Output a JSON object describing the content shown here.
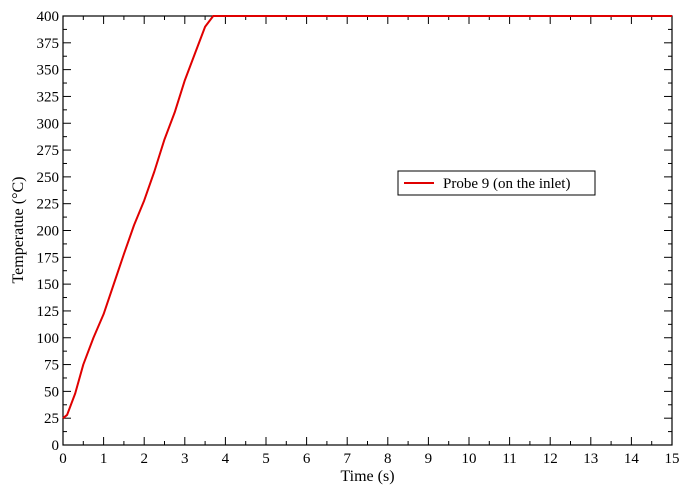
{
  "chart_data": {
    "type": "line",
    "xlabel": "Time (s)",
    "ylabel": "Temperatue (°C)",
    "xlim": [
      0,
      15
    ],
    "ylim": [
      0,
      400
    ],
    "x_ticks": [
      0,
      1,
      2,
      3,
      4,
      5,
      6,
      7,
      8,
      9,
      10,
      11,
      12,
      13,
      14,
      15
    ],
    "y_ticks": [
      0,
      25,
      50,
      75,
      100,
      125,
      150,
      175,
      200,
      225,
      250,
      275,
      300,
      325,
      350,
      375,
      400
    ],
    "grid": false,
    "legend_position": "right-center",
    "series": [
      {
        "name": "Probe 9 (on the inlet)",
        "color": "#e00000",
        "x": [
          0,
          0.1,
          0.3,
          0.5,
          0.75,
          1.0,
          1.25,
          1.5,
          1.75,
          2.0,
          2.25,
          2.5,
          2.75,
          3.0,
          3.25,
          3.5,
          3.7,
          3.82,
          5,
          8,
          12,
          15
        ],
        "y": [
          25,
          28,
          48,
          75,
          100,
          122,
          150,
          178,
          205,
          228,
          255,
          285,
          310,
          340,
          365,
          390,
          400,
          400,
          400,
          400,
          400,
          400
        ]
      }
    ]
  }
}
